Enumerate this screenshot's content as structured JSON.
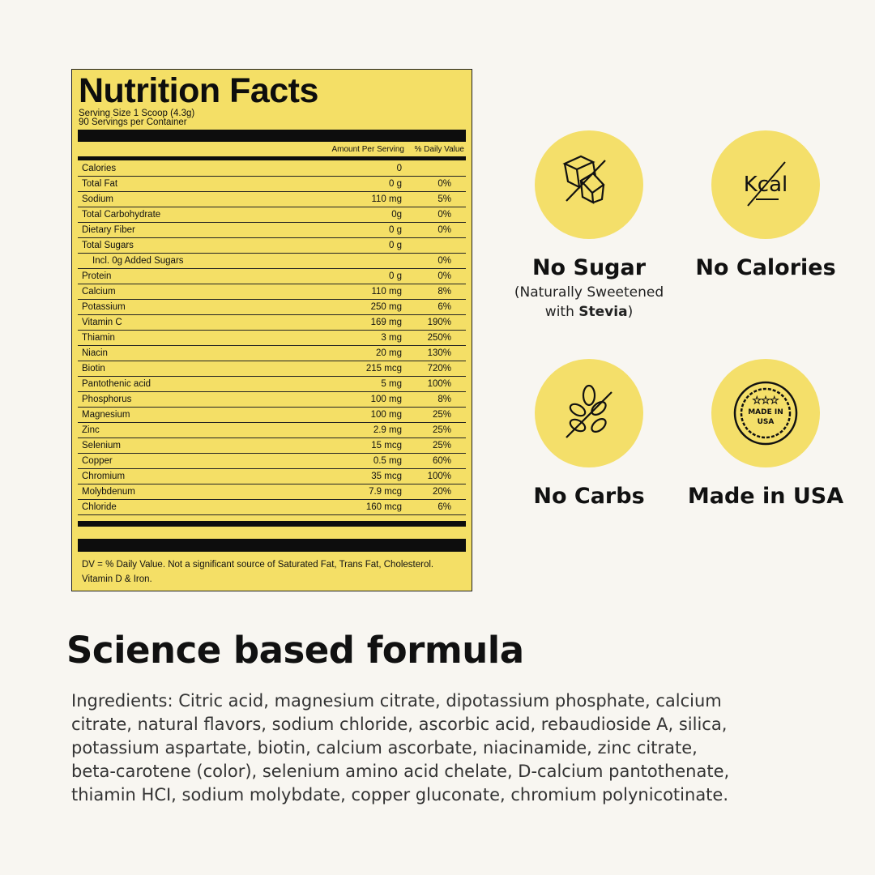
{
  "label": {
    "title": "Nutrition Facts",
    "serving_size": "Serving Size 1 Scoop (4.3g)",
    "servings": "90 Servings per Container",
    "col_amount": "Amount Per Serving",
    "col_dv": "% Daily Value",
    "rows": [
      {
        "name": "Calories",
        "amount": "0",
        "dv": ""
      },
      {
        "name": "Total Fat",
        "amount": "0 g",
        "dv": "0%"
      },
      {
        "name": "Sodium",
        "amount": "110 mg",
        "dv": "5%"
      },
      {
        "name": "Total Carbohydrate",
        "amount": "0g",
        "dv": "0%"
      },
      {
        "name": "Dietary Fiber",
        "amount": "0 g",
        "dv": "0%"
      },
      {
        "name": "Total Sugars",
        "amount": "0 g",
        "dv": ""
      },
      {
        "name": "Incl. 0g Added Sugars",
        "amount": "",
        "dv": "0%",
        "indent": true
      },
      {
        "name": "Protein",
        "amount": "0 g",
        "dv": "0%"
      },
      {
        "name": "Calcium",
        "amount": "110 mg",
        "dv": "8%"
      },
      {
        "name": "Potassium",
        "amount": "250 mg",
        "dv": "6%"
      },
      {
        "name": "Vitamin C",
        "amount": "169 mg",
        "dv": "190%"
      },
      {
        "name": "Thiamin",
        "amount": "3 mg",
        "dv": "250%"
      },
      {
        "name": "Niacin",
        "amount": "20 mg",
        "dv": "130%"
      },
      {
        "name": "Biotin",
        "amount": "215 mcg",
        "dv": "720%"
      },
      {
        "name": "Pantothenic acid",
        "amount": "5 mg",
        "dv": "100%"
      },
      {
        "name": "Phosphorus",
        "amount": "100 mg",
        "dv": "8%"
      },
      {
        "name": "Magnesium",
        "amount": "100 mg",
        "dv": "25%"
      },
      {
        "name": "Zinc",
        "amount": "2.9 mg",
        "dv": "25%"
      },
      {
        "name": "Selenium",
        "amount": "15 mcg",
        "dv": "25%"
      },
      {
        "name": "Copper",
        "amount": "0.5 mg",
        "dv": "60%"
      },
      {
        "name": "Chromium",
        "amount": "35 mcg",
        "dv": "100%"
      },
      {
        "name": "Molybdenum",
        "amount": "7.9 mcg",
        "dv": "20%"
      },
      {
        "name": "Chloride",
        "amount": "160 mcg",
        "dv": "6%"
      }
    ],
    "footnote": "DV = % Daily Value. Not a significant source of Saturated Fat, Trans Fat, Cholesterol. Vitamin D & Iron."
  },
  "features": [
    {
      "title": "No Sugar",
      "sub_prefix": "(Naturally Sweetened with ",
      "sub_bold": "Stevia",
      "sub_suffix": ")",
      "icon": "sugar-cube-crossed-icon"
    },
    {
      "title": "No Calories",
      "icon": "kcal-crossed-icon",
      "icon_text": "Kcal"
    },
    {
      "title": "No Carbs",
      "icon": "wheat-crossed-icon"
    },
    {
      "title": "Made in USA",
      "icon": "made-in-usa-badge-icon",
      "icon_text": "MADE IN USA"
    }
  ],
  "heading": "Science based formula",
  "ingredients": "Ingredients: Citric acid, magnesium citrate, dipotassium phosphate, calcium citrate, natural flavors, sodium chloride, ascorbic acid, rebaudioside A, silica, potassium aspartate, biotin, calcium ascorbate, niacinamide, zinc citrate, beta-carotene (color), selenium amino acid chelate, D-calcium pantothenate, thiamin HCI, sodium molybdate, copper gluconate, chromium polynicotinate.",
  "colors": {
    "yellow": "#f4df66",
    "background": "#f8f6f1"
  }
}
